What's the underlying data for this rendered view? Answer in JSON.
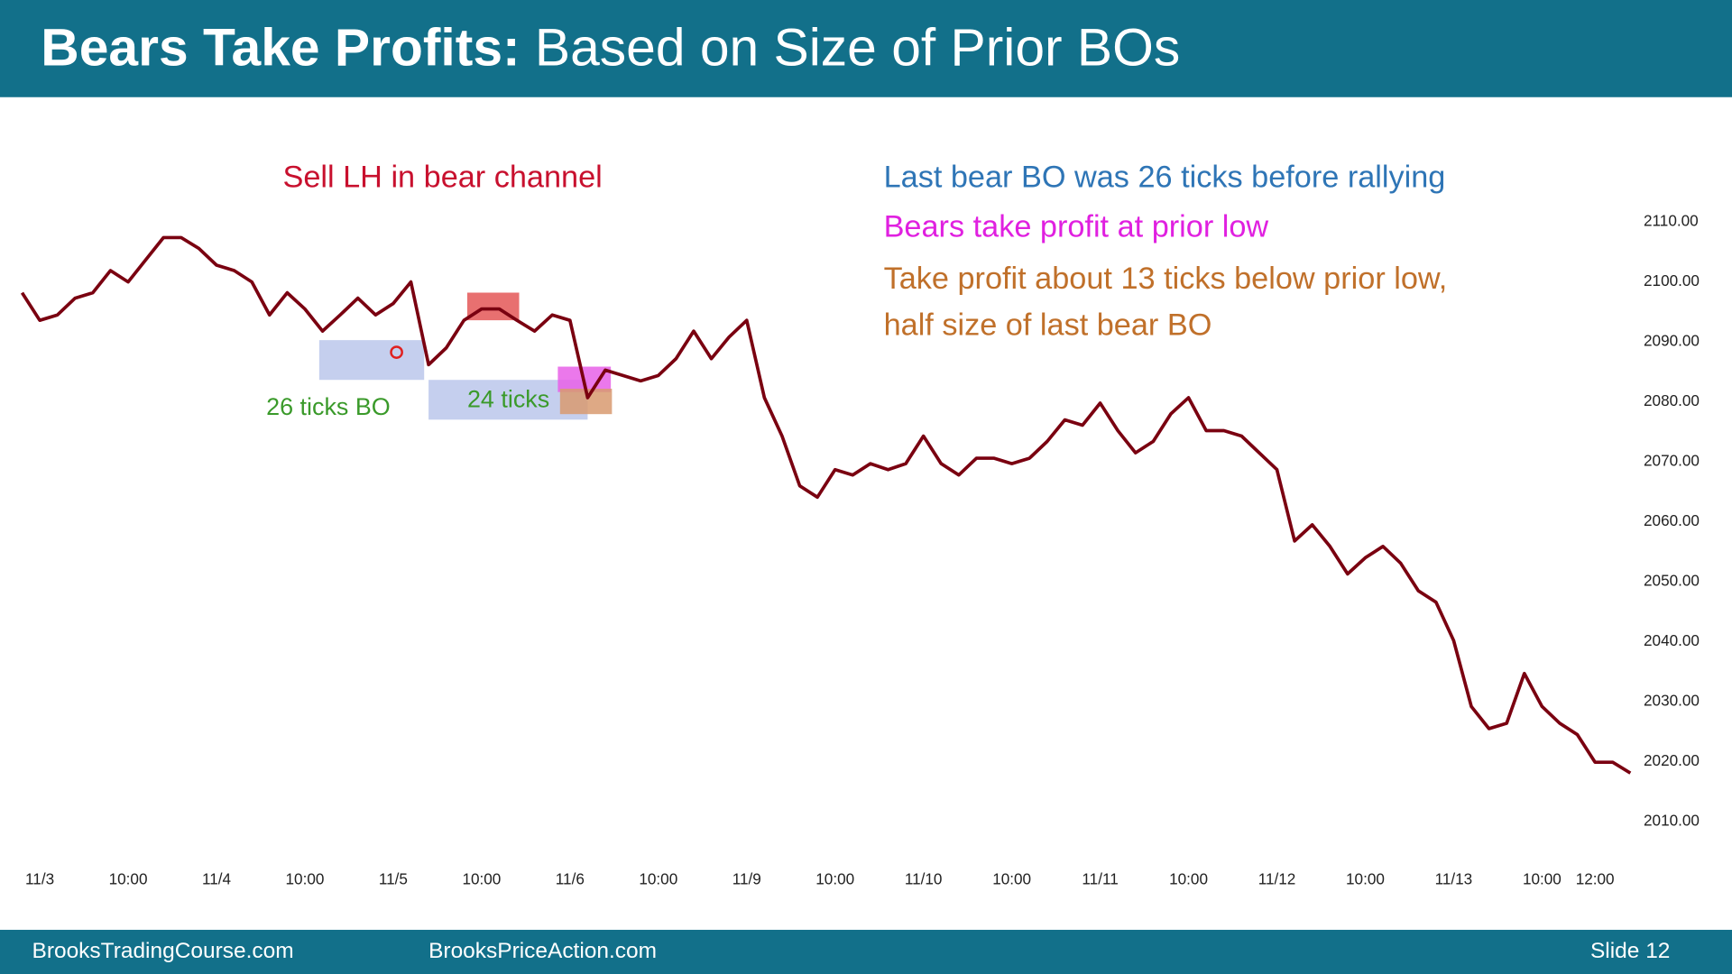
{
  "header": {
    "title_bold": "Bears Take Profits:",
    "title_rest": " Based on Size of Prior BOs"
  },
  "footer": {
    "left": "BrooksTradingCourse.com",
    "middle": "BrooksPriceAction.com",
    "right": "Slide  12"
  },
  "chart_data": {
    "type": "line",
    "categories": [
      null,
      "11/3",
      null,
      null,
      null,
      null,
      "10:00",
      null,
      null,
      null,
      null,
      "11/4",
      null,
      null,
      null,
      null,
      "10:00",
      null,
      null,
      null,
      null,
      "11/5",
      null,
      null,
      null,
      null,
      "10:00",
      null,
      null,
      null,
      null,
      "11/6",
      null,
      null,
      null,
      null,
      "10:00",
      null,
      null,
      null,
      null,
      "11/9",
      null,
      null,
      null,
      null,
      "10:00",
      null,
      null,
      null,
      null,
      "11/10",
      null,
      null,
      null,
      null,
      "10:00",
      null,
      null,
      null,
      null,
      "11/11",
      null,
      null,
      null,
      null,
      "10:00",
      null,
      null,
      null,
      null,
      "11/12",
      null,
      null,
      null,
      null,
      "10:00",
      null,
      null,
      null,
      null,
      "11/13",
      null,
      null,
      null,
      null,
      "10:00",
      null,
      null,
      "12:00",
      null,
      null
    ],
    "series": [
      {
        "name": "Price",
        "color": "#7a0010",
        "values": [
          2098.2,
          2093.6,
          2094.5,
          2097.3,
          2098.2,
          2101.9,
          2100,
          2103.7,
          2107.4,
          2107.4,
          2105.6,
          2102.8,
          2101.9,
          2100,
          2094.5,
          2098.2,
          2095.5,
          2091.8,
          2094.5,
          2097.3,
          2094.5,
          2096.4,
          2100,
          2086.2,
          2089,
          2093.6,
          2095.5,
          2095.5,
          2093.6,
          2091.8,
          2094.5,
          2093.6,
          2080.7,
          2085.3,
          2084.4,
          2083.5,
          2084.4,
          2087.2,
          2091.8,
          2087.2,
          2090.8,
          2093.6,
          2080.7,
          2074.3,
          2066,
          2064.1,
          2068.7,
          2067.8,
          2069.7,
          2068.7,
          2069.7,
          2074.3,
          2069.7,
          2067.8,
          2070.6,
          2070.6,
          2069.7,
          2070.6,
          2073.4,
          2077,
          2076.1,
          2079.8,
          2075.2,
          2071.5,
          2073.4,
          2078,
          2080.7,
          2075.2,
          2075.2,
          2074.3,
          2071.5,
          2068.7,
          2056.8,
          2059.5,
          2055.9,
          2051.3,
          2054,
          2055.9,
          2053.1,
          2048.5,
          2046.6,
          2040.2,
          2029.2,
          2025.5,
          2026.4,
          2034.7,
          2029.2,
          2026.4,
          2024.5,
          2019.9,
          2019.9,
          2018.1
        ]
      }
    ],
    "ylim": [
      2006,
      2114
    ],
    "yticks": [
      {
        "value": 2010,
        "label": "2010.00"
      },
      {
        "value": 2020,
        "label": "2020.00"
      },
      {
        "value": 2030,
        "label": "2030.00"
      },
      {
        "value": 2040,
        "label": "2040.00"
      },
      {
        "value": 2050,
        "label": "2050.00"
      },
      {
        "value": 2060,
        "label": "2060.00"
      },
      {
        "value": 2070,
        "label": "2070.00"
      },
      {
        "value": 2080,
        "label": "2080.00"
      },
      {
        "value": 2090,
        "label": "2090.00"
      },
      {
        "value": 2100,
        "label": "2100.00"
      },
      {
        "value": 2110,
        "label": "2110.00"
      }
    ],
    "grid": false,
    "annotations": [
      {
        "text": "Sell LH in bear channel",
        "color": "#c8102e"
      },
      {
        "text": "Last bear BO was 26 ticks before rallying",
        "color": "#2e75b6"
      },
      {
        "text": "Bears take profit at prior low",
        "color": "#e020e0"
      },
      {
        "text": "Take profit about 13 ticks below prior low,",
        "color": "#c0702a"
      },
      {
        "text": "half size of last bear BO",
        "color": "#c0702a"
      },
      {
        "text": "26 ticks BO",
        "color": "#3a9a2a"
      },
      {
        "text": "24 ticks",
        "color": "#3a9a2a"
      }
    ]
  }
}
